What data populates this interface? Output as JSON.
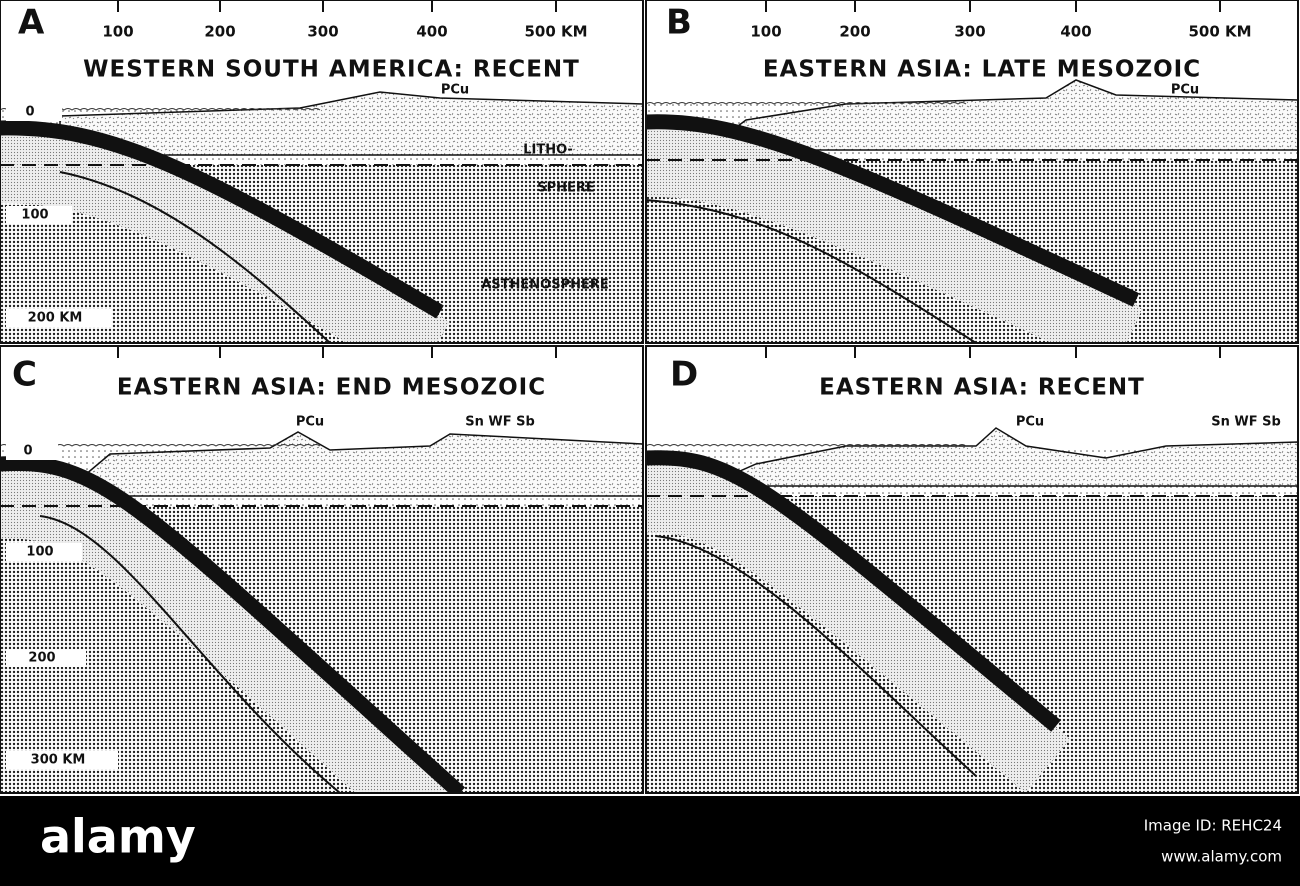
{
  "panels": [
    {
      "letter": "A",
      "title": "WESTERN SOUTH AMERICA: RECENT",
      "scale": [
        "100",
        "200",
        "300",
        "400",
        "500 KM"
      ],
      "labels": [
        "PCu",
        "LITHO-",
        "SPHERE",
        "ASTHENOSPHERE"
      ],
      "depths": [
        "0",
        "100",
        "200 KM"
      ]
    },
    {
      "letter": "B",
      "title": "EASTERN ASIA: LATE MESOZOIC",
      "scale": [
        "100",
        "200",
        "300",
        "400",
        "500 KM"
      ],
      "labels": [
        "PCu"
      ]
    },
    {
      "letter": "C",
      "title": "EASTERN ASIA: END MESOZOIC",
      "labels": [
        "PCu",
        "Sn WF Sb"
      ],
      "depths": [
        "0",
        "100",
        "200",
        "300 KM"
      ]
    },
    {
      "letter": "D",
      "title": "EASTERN ASIA: RECENT",
      "labels": [
        "PCu",
        "Sn WF Sb"
      ]
    }
  ],
  "footer": {
    "brand": "alamy",
    "image_id": "Image ID: REHC24",
    "url": "www.alamy.com"
  }
}
